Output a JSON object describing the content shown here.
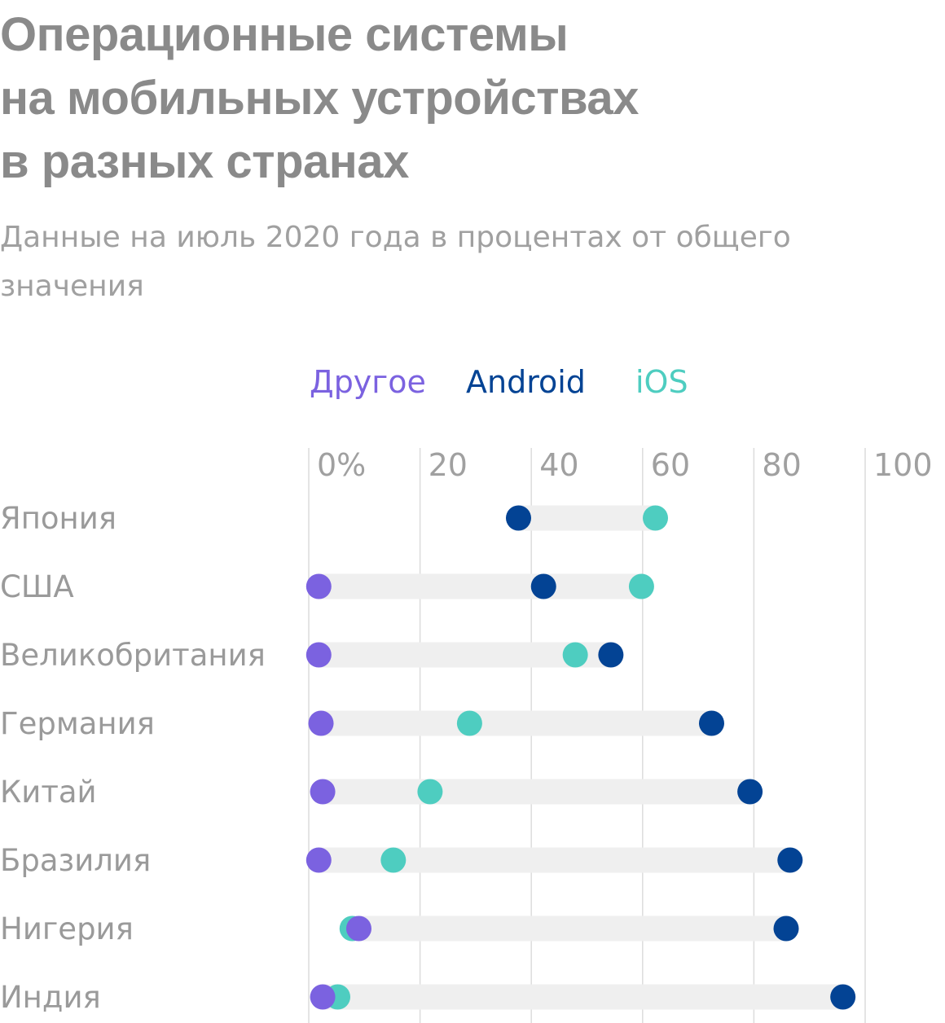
{
  "header": {
    "title_lines": [
      "Операционные системы",
      "на мобильных устройствах",
      "в разных странах"
    ],
    "subtitle_lines": [
      "Данные на июль 2020 года в процентах от общего",
      "значения"
    ]
  },
  "colors": {
    "other": "#7b62e0",
    "android": "#034394",
    "ios": "#4ecdc0",
    "track": "#efefef",
    "grid": "#dcdcdc"
  },
  "chart_data": {
    "type": "scatter",
    "legend": {
      "placement": "top",
      "entries": [
        {
          "key": "other",
          "label": "Другое"
        },
        {
          "key": "android",
          "label": "Android"
        },
        {
          "key": "ios",
          "label": "iOS"
        }
      ]
    },
    "xlim": [
      0,
      100
    ],
    "x_ticks": [
      0,
      20,
      40,
      60,
      80,
      100
    ],
    "x_tick_labels": [
      "0%",
      "20",
      "40",
      "60",
      "80",
      "100"
    ],
    "grid": true,
    "categories": [
      "Япония",
      "США",
      "Великобритания",
      "Германия",
      "Китай",
      "Бразилия",
      "Нигерия",
      "Индия"
    ],
    "series": [
      {
        "key": "other",
        "name": "Другое",
        "values": [
          null,
          1.8,
          1.8,
          2.2,
          2.5,
          1.8,
          9.0,
          2.5
        ]
      },
      {
        "key": "android",
        "name": "Android",
        "values": [
          37.7,
          42.2,
          54.3,
          72.4,
          79.3,
          86.5,
          85.8,
          96.0
        ]
      },
      {
        "key": "ios",
        "name": "iOS",
        "values": [
          62.3,
          59.8,
          47.9,
          28.9,
          21.8,
          15.2,
          7.8,
          5.2
        ]
      }
    ]
  }
}
